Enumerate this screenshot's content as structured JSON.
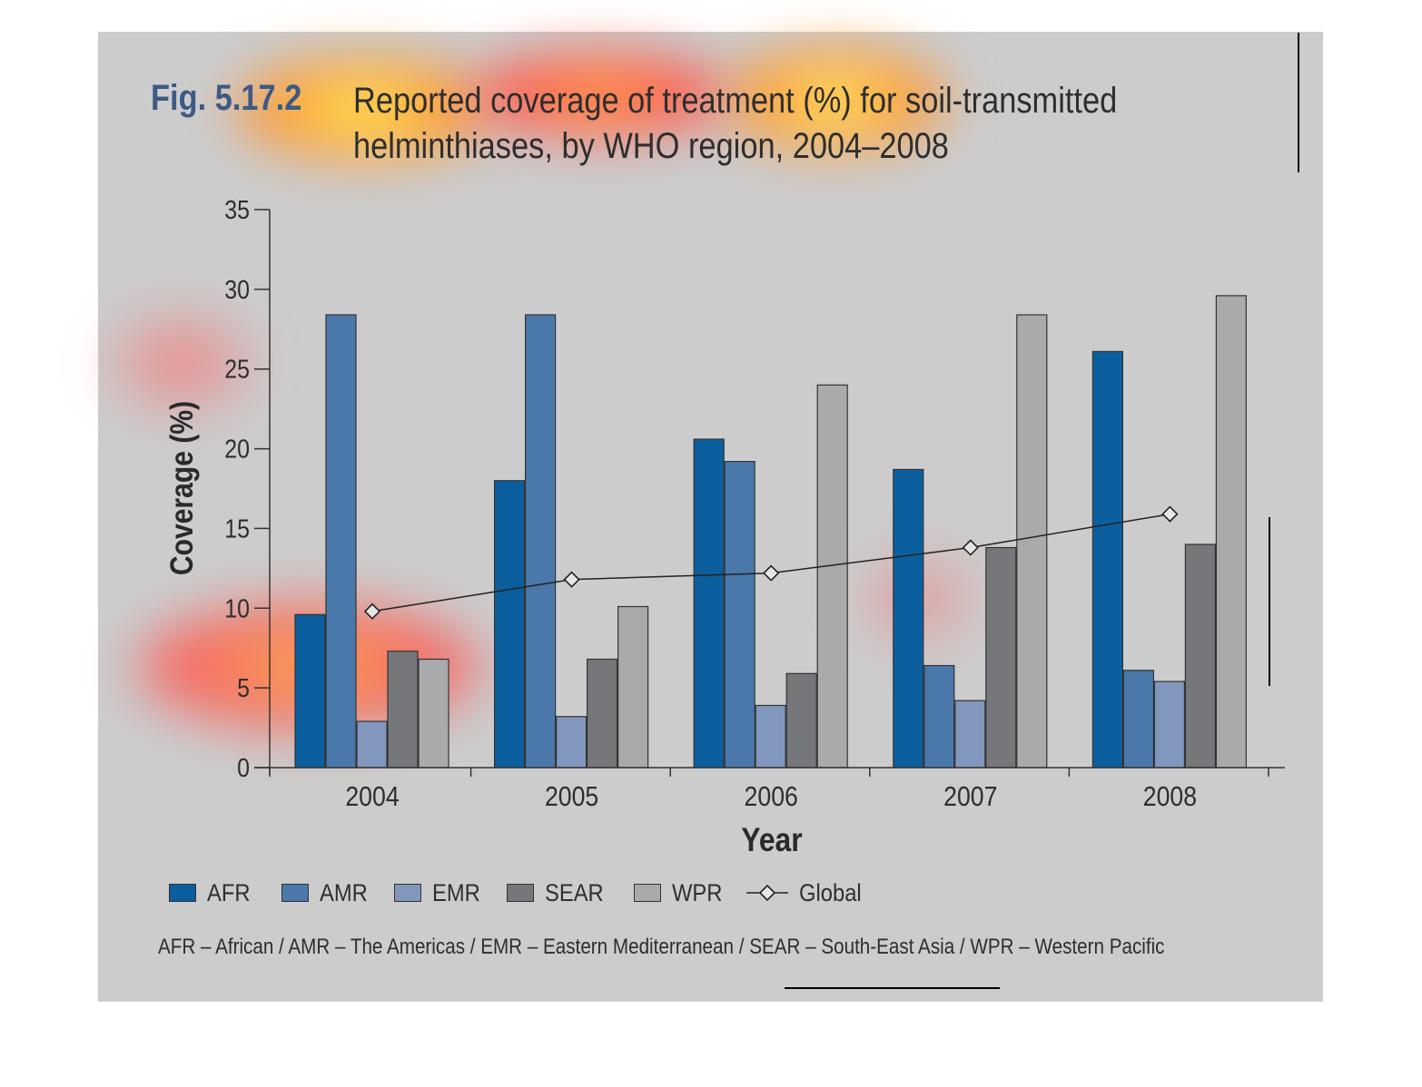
{
  "figure": {
    "number": "Fig. 5.17.2",
    "title": "Reported coverage of treatment (%) for soil-transmitted\nhelminthiases, by WHO region, 2004–2008",
    "footnote": "AFR – African / AMR – The Americas / EMR – Eastern Mediterranean / SEAR – South-East Asia / WPR – Western Pacific"
  },
  "chart_data": {
    "type": "bar",
    "title": "Reported coverage of treatment (%) for soil-transmitted helminthiases, by WHO region, 2004–2008",
    "xlabel": "Year",
    "ylabel": "Coverage (%)",
    "categories": [
      "2004",
      "2005",
      "2006",
      "2007",
      "2008"
    ],
    "ylim": [
      0,
      35
    ],
    "yticks": [
      0,
      5,
      10,
      15,
      20,
      25,
      30,
      35
    ],
    "grid": false,
    "legend_position": "bottom",
    "series": [
      {
        "name": "AFR",
        "values": [
          9.6,
          18.0,
          20.6,
          18.7,
          26.1
        ],
        "color": "#0b5f9e"
      },
      {
        "name": "AMR",
        "values": [
          28.4,
          28.4,
          19.2,
          6.4,
          6.1
        ],
        "color": "#4a78aa"
      },
      {
        "name": "EMR",
        "values": [
          2.9,
          3.2,
          3.9,
          4.2,
          5.4
        ],
        "color": "#8197bd"
      },
      {
        "name": "SEAR",
        "values": [
          7.3,
          6.8,
          5.9,
          13.8,
          14.0
        ],
        "color": "#76777a"
      },
      {
        "name": "WPR",
        "values": [
          6.8,
          10.1,
          24.0,
          28.4,
          29.6
        ],
        "color": "#a9aaac"
      }
    ],
    "line_series": {
      "name": "Global",
      "values": [
        9.8,
        11.8,
        12.2,
        13.8,
        15.9
      ],
      "marker": "diamond",
      "color": "#222222"
    }
  }
}
